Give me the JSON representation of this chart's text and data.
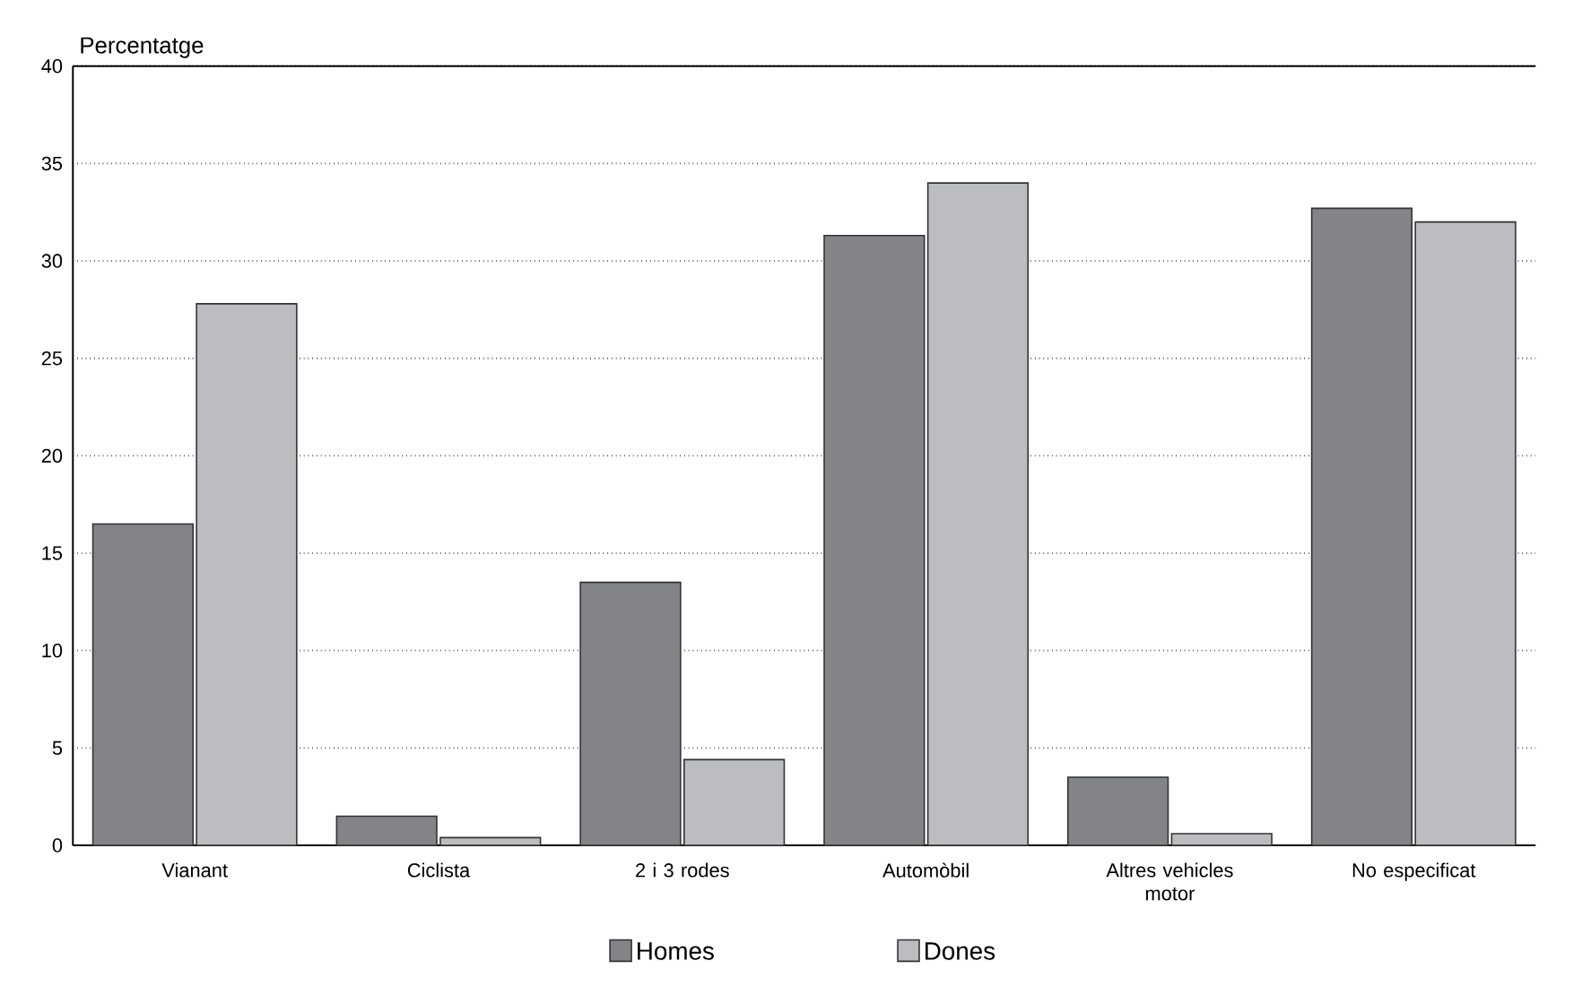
{
  "chart_data": {
    "type": "bar",
    "ylabel": "Percentatge",
    "categories": [
      "Vianant",
      "Ciclista",
      "2 i 3 rodes",
      "Automòbil",
      "Altres vehicles motor",
      "No especificat"
    ],
    "series": [
      {
        "name": "Homes",
        "color": "#838487",
        "values": [
          16.5,
          1.5,
          13.5,
          31.3,
          3.5,
          32.7
        ]
      },
      {
        "name": "Dones",
        "color": "#bcbdc1",
        "values": [
          27.8,
          0.4,
          4.4,
          34.0,
          0.6,
          32.0
        ]
      }
    ],
    "ylim": [
      0,
      40
    ],
    "yticks": [
      0,
      5,
      10,
      15,
      20,
      25,
      30,
      35,
      40
    ],
    "grid": "y",
    "legend": "bottom"
  }
}
